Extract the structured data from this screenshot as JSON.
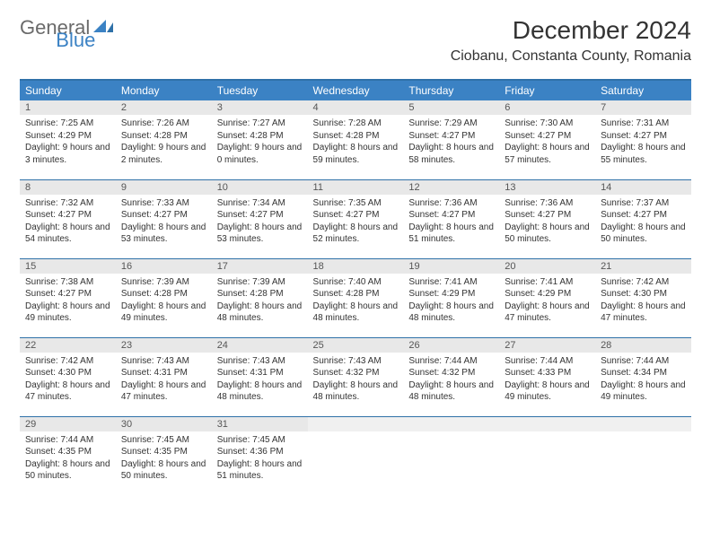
{
  "brand": {
    "general": "General",
    "blue": "Blue"
  },
  "month_title": "December 2024",
  "location": "Ciobanu, Constanta County, Romania",
  "colors": {
    "header_bg": "#3b82c4",
    "header_text": "#ffffff",
    "rule": "#2f71a8",
    "daynum_bg": "#e8e8e8",
    "body_text": "#333333",
    "logo_gray": "#6a6a6a",
    "logo_blue": "#3b82c4",
    "page_bg": "#ffffff"
  },
  "weekdays": [
    "Sunday",
    "Monday",
    "Tuesday",
    "Wednesday",
    "Thursday",
    "Friday",
    "Saturday"
  ],
  "days": [
    {
      "n": "1",
      "sunrise": "7:25 AM",
      "sunset": "4:29 PM",
      "daylight": "9 hours and 3 minutes."
    },
    {
      "n": "2",
      "sunrise": "7:26 AM",
      "sunset": "4:28 PM",
      "daylight": "9 hours and 2 minutes."
    },
    {
      "n": "3",
      "sunrise": "7:27 AM",
      "sunset": "4:28 PM",
      "daylight": "9 hours and 0 minutes."
    },
    {
      "n": "4",
      "sunrise": "7:28 AM",
      "sunset": "4:28 PM",
      "daylight": "8 hours and 59 minutes."
    },
    {
      "n": "5",
      "sunrise": "7:29 AM",
      "sunset": "4:27 PM",
      "daylight": "8 hours and 58 minutes."
    },
    {
      "n": "6",
      "sunrise": "7:30 AM",
      "sunset": "4:27 PM",
      "daylight": "8 hours and 57 minutes."
    },
    {
      "n": "7",
      "sunrise": "7:31 AM",
      "sunset": "4:27 PM",
      "daylight": "8 hours and 55 minutes."
    },
    {
      "n": "8",
      "sunrise": "7:32 AM",
      "sunset": "4:27 PM",
      "daylight": "8 hours and 54 minutes."
    },
    {
      "n": "9",
      "sunrise": "7:33 AM",
      "sunset": "4:27 PM",
      "daylight": "8 hours and 53 minutes."
    },
    {
      "n": "10",
      "sunrise": "7:34 AM",
      "sunset": "4:27 PM",
      "daylight": "8 hours and 53 minutes."
    },
    {
      "n": "11",
      "sunrise": "7:35 AM",
      "sunset": "4:27 PM",
      "daylight": "8 hours and 52 minutes."
    },
    {
      "n": "12",
      "sunrise": "7:36 AM",
      "sunset": "4:27 PM",
      "daylight": "8 hours and 51 minutes."
    },
    {
      "n": "13",
      "sunrise": "7:36 AM",
      "sunset": "4:27 PM",
      "daylight": "8 hours and 50 minutes."
    },
    {
      "n": "14",
      "sunrise": "7:37 AM",
      "sunset": "4:27 PM",
      "daylight": "8 hours and 50 minutes."
    },
    {
      "n": "15",
      "sunrise": "7:38 AM",
      "sunset": "4:27 PM",
      "daylight": "8 hours and 49 minutes."
    },
    {
      "n": "16",
      "sunrise": "7:39 AM",
      "sunset": "4:28 PM",
      "daylight": "8 hours and 49 minutes."
    },
    {
      "n": "17",
      "sunrise": "7:39 AM",
      "sunset": "4:28 PM",
      "daylight": "8 hours and 48 minutes."
    },
    {
      "n": "18",
      "sunrise": "7:40 AM",
      "sunset": "4:28 PM",
      "daylight": "8 hours and 48 minutes."
    },
    {
      "n": "19",
      "sunrise": "7:41 AM",
      "sunset": "4:29 PM",
      "daylight": "8 hours and 48 minutes."
    },
    {
      "n": "20",
      "sunrise": "7:41 AM",
      "sunset": "4:29 PM",
      "daylight": "8 hours and 47 minutes."
    },
    {
      "n": "21",
      "sunrise": "7:42 AM",
      "sunset": "4:30 PM",
      "daylight": "8 hours and 47 minutes."
    },
    {
      "n": "22",
      "sunrise": "7:42 AM",
      "sunset": "4:30 PM",
      "daylight": "8 hours and 47 minutes."
    },
    {
      "n": "23",
      "sunrise": "7:43 AM",
      "sunset": "4:31 PM",
      "daylight": "8 hours and 47 minutes."
    },
    {
      "n": "24",
      "sunrise": "7:43 AM",
      "sunset": "4:31 PM",
      "daylight": "8 hours and 48 minutes."
    },
    {
      "n": "25",
      "sunrise": "7:43 AM",
      "sunset": "4:32 PM",
      "daylight": "8 hours and 48 minutes."
    },
    {
      "n": "26",
      "sunrise": "7:44 AM",
      "sunset": "4:32 PM",
      "daylight": "8 hours and 48 minutes."
    },
    {
      "n": "27",
      "sunrise": "7:44 AM",
      "sunset": "4:33 PM",
      "daylight": "8 hours and 49 minutes."
    },
    {
      "n": "28",
      "sunrise": "7:44 AM",
      "sunset": "4:34 PM",
      "daylight": "8 hours and 49 minutes."
    },
    {
      "n": "29",
      "sunrise": "7:44 AM",
      "sunset": "4:35 PM",
      "daylight": "8 hours and 50 minutes."
    },
    {
      "n": "30",
      "sunrise": "7:45 AM",
      "sunset": "4:35 PM",
      "daylight": "8 hours and 50 minutes."
    },
    {
      "n": "31",
      "sunrise": "7:45 AM",
      "sunset": "4:36 PM",
      "daylight": "8 hours and 51 minutes."
    }
  ],
  "labels": {
    "sunrise": "Sunrise: ",
    "sunset": "Sunset: ",
    "daylight": "Daylight: "
  },
  "layout": {
    "first_weekday_index": 0,
    "days_in_month": 31,
    "cols": 7,
    "rows": 5
  }
}
